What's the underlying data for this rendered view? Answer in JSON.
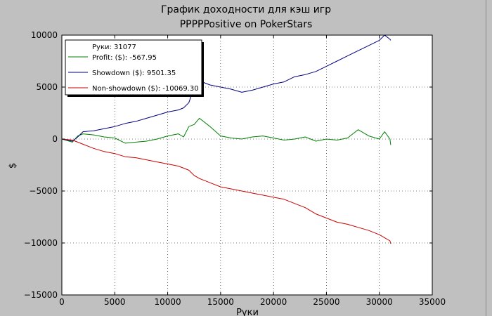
{
  "chart_data": {
    "type": "line",
    "title": "График доходности для кэш игр",
    "subtitle": "PPPPPositive on PokerStars",
    "xlabel": "Руки",
    "ylabel": "$",
    "xlim": [
      0,
      35000
    ],
    "ylim": [
      -15000,
      10000
    ],
    "x_ticks": [
      0,
      5000,
      10000,
      15000,
      20000,
      25000,
      30000,
      35000
    ],
    "y_ticks": [
      -15000,
      -10000,
      -5000,
      0,
      5000,
      10000
    ],
    "x_tick_labels": [
      "0",
      "5000",
      "10000",
      "15000",
      "20000",
      "25000",
      "30000",
      "35000"
    ],
    "y_tick_labels": [
      "−15000",
      "−10000",
      "−5000",
      "0",
      "5000",
      "10000"
    ],
    "grid": true,
    "legend_position": "top-left",
    "legend_header": "Руки: 31077",
    "series": [
      {
        "name": "Profit: ($): -567.95",
        "color": "#008000",
        "x": [
          0,
          1000,
          1500,
          2000,
          3000,
          4000,
          5000,
          6000,
          7000,
          8000,
          9000,
          10000,
          11000,
          11500,
          12000,
          12500,
          13000,
          14000,
          15000,
          16000,
          17000,
          18000,
          19000,
          20000,
          21000,
          22000,
          23000,
          24000,
          25000,
          26000,
          27000,
          28000,
          29000,
          30000,
          30500,
          31000,
          31077
        ],
        "y": [
          0,
          -300,
          300,
          500,
          400,
          200,
          100,
          -400,
          -300,
          -200,
          0,
          300,
          500,
          200,
          1200,
          1400,
          2000,
          1200,
          300,
          100,
          0,
          200,
          300,
          100,
          -100,
          0,
          200,
          -200,
          0,
          -100,
          100,
          900,
          300,
          0,
          700,
          0,
          -568
        ]
      },
      {
        "name": "Showdown ($): 9501.35",
        "color": "#000080",
        "x": [
          0,
          1000,
          1500,
          2000,
          3000,
          4000,
          5000,
          6000,
          7000,
          8000,
          9000,
          10000,
          11000,
          11500,
          12000,
          12500,
          13000,
          14000,
          15000,
          16000,
          17000,
          18000,
          19000,
          20000,
          21000,
          22000,
          23000,
          24000,
          25000,
          26000,
          27000,
          28000,
          29000,
          30000,
          30500,
          31000,
          31077
        ],
        "y": [
          0,
          -200,
          200,
          700,
          800,
          1000,
          1200,
          1500,
          1700,
          2000,
          2300,
          2600,
          2800,
          3000,
          3500,
          5000,
          5600,
          5200,
          5000,
          4800,
          4500,
          4700,
          5000,
          5300,
          5500,
          6000,
          6200,
          6500,
          7000,
          7500,
          8000,
          8500,
          9000,
          9500,
          10000,
          9600,
          9501
        ]
      },
      {
        "name": "Non-showdown ($): -10069.30",
        "color": "#cc0000",
        "x": [
          0,
          1000,
          1500,
          2000,
          3000,
          4000,
          5000,
          6000,
          7000,
          8000,
          9000,
          10000,
          11000,
          11500,
          12000,
          12500,
          13000,
          14000,
          15000,
          16000,
          17000,
          18000,
          19000,
          20000,
          21000,
          22000,
          23000,
          24000,
          25000,
          26000,
          27000,
          28000,
          29000,
          30000,
          30500,
          31000,
          31077
        ],
        "y": [
          0,
          -100,
          -300,
          -500,
          -900,
          -1200,
          -1400,
          -1700,
          -1800,
          -2000,
          -2200,
          -2400,
          -2600,
          -2800,
          -3000,
          -3500,
          -3800,
          -4200,
          -4600,
          -4800,
          -5000,
          -5200,
          -5400,
          -5600,
          -5800,
          -6200,
          -6600,
          -7200,
          -7600,
          -8000,
          -8200,
          -8500,
          -8800,
          -9200,
          -9500,
          -9800,
          -10069
        ]
      }
    ]
  }
}
